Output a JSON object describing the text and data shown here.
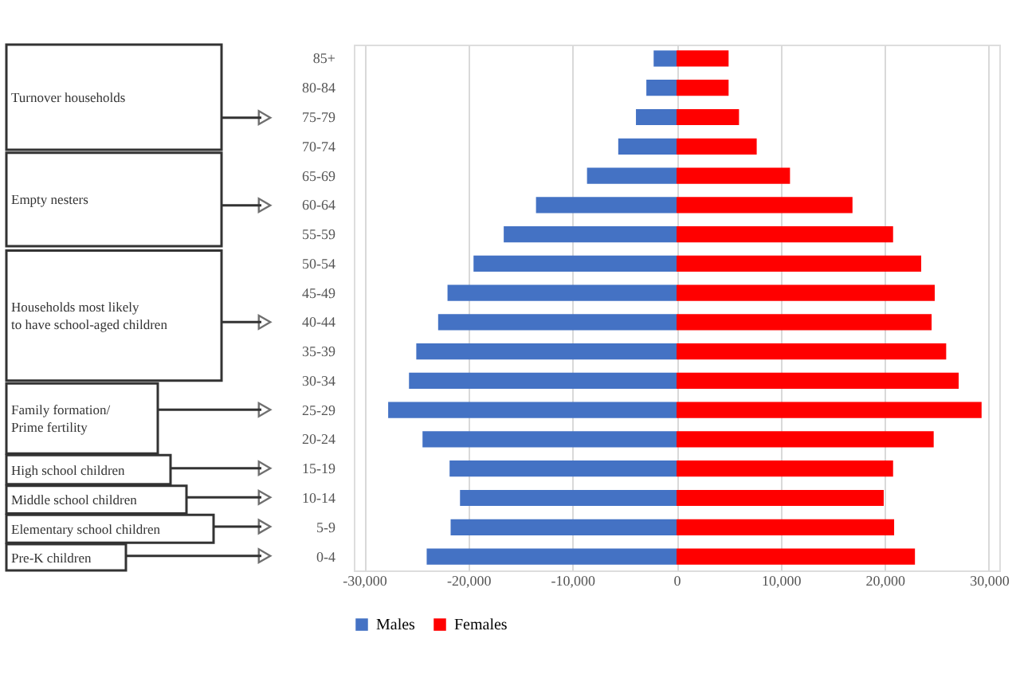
{
  "chart_data": {
    "type": "bar",
    "orientation": "horizontal",
    "categories": [
      "85+",
      "80-84",
      "75-79",
      "70-74",
      "65-69",
      "60-64",
      "55-59",
      "50-54",
      "45-49",
      "40-44",
      "35-39",
      "30-34",
      "25-29",
      "20-24",
      "15-19",
      "10-14",
      "5-9",
      "0-4"
    ],
    "series": [
      {
        "name": "Males",
        "color": "#4472c4",
        "values": [
          -2200,
          -2900,
          -3900,
          -5600,
          -8600,
          -13500,
          -16600,
          -19500,
          -22000,
          -22900,
          -25000,
          -25700,
          -27700,
          -24400,
          -21800,
          -20800,
          -21700,
          -24000
        ]
      },
      {
        "name": "Females",
        "color": "#ff0000",
        "values": [
          5000,
          5000,
          6000,
          7700,
          10900,
          16900,
          20800,
          23500,
          24800,
          24500,
          25900,
          27100,
          29300,
          24700,
          20800,
          19900,
          20900,
          22900
        ]
      }
    ],
    "xlim": [
      -31000,
      31000
    ],
    "xticks": [
      {
        "value": -30000,
        "label": "-30,000"
      },
      {
        "value": -20000,
        "label": "-20,000"
      },
      {
        "value": -10000,
        "label": "-10,000"
      },
      0,
      {
        "value": 10000,
        "label": "10,000"
      },
      {
        "value": 20000,
        "label": "20,000"
      },
      {
        "value": 30000,
        "label": "30,000"
      }
    ],
    "grid": "x",
    "legend": "bottom",
    "stacked": true,
    "annotations": [
      "Turnover households",
      "Empty nesters",
      "Households most likely\nto have school-aged children",
      "Family formation/\nPrime fertility",
      "High school children",
      "Middle school children",
      "Elementary school children",
      "Pre-K children"
    ]
  }
}
